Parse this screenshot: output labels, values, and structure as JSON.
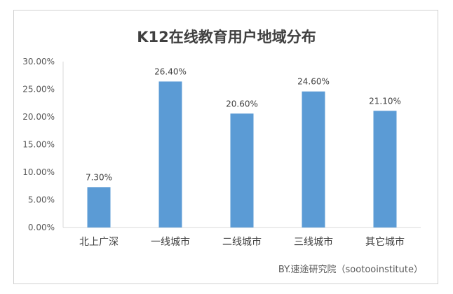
{
  "chart_data": {
    "type": "bar",
    "title": "K12在线教育用户地域分布",
    "categories": [
      "北上广深",
      "一线城市",
      "二线城市",
      "三线城市",
      "其它城市"
    ],
    "values": [
      7.3,
      26.4,
      20.6,
      24.6,
      21.1
    ],
    "data_labels": [
      "7.30%",
      "26.40%",
      "20.60%",
      "24.60%",
      "21.10%"
    ],
    "y_ticks": [
      "0.00%",
      "5.00%",
      "10.00%",
      "15.00%",
      "20.00%",
      "25.00%",
      "30.00%"
    ],
    "ylim": [
      0,
      30
    ],
    "grid": false,
    "legend": "none",
    "bar_color": "#5b9bd5",
    "xlabel": "",
    "ylabel": ""
  },
  "source_note": "BY.速途研究院（sootooinstitute）"
}
